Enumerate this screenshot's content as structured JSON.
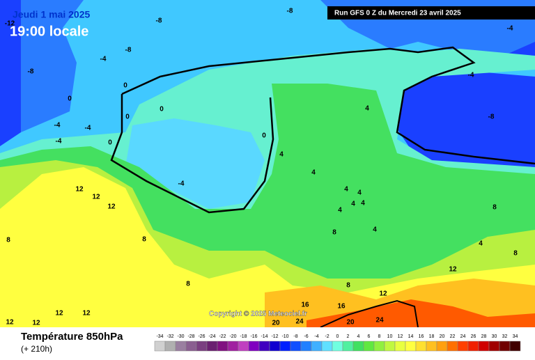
{
  "header": {
    "date": "Jeudi 1 mai 2025",
    "time": "19:00 locale",
    "run": "Run GFS 0 Z du Mercredi 23 avril 2025"
  },
  "copyright": "Copyright © 2025 Meteociel.fr",
  "footer": {
    "title": "Température 850hPa",
    "lead": "(+ 210h)"
  },
  "contour_labels": [
    "-12",
    "-8",
    "-8",
    "-4",
    "-8",
    "-4",
    "-8",
    "0",
    "-4",
    "0",
    "0",
    "0",
    "-4",
    "-4",
    "-4",
    "0",
    "-8",
    "4",
    "0",
    "4",
    "-4",
    "12",
    "12",
    "12",
    "4",
    "4",
    "4",
    "4",
    "4",
    "4",
    "8",
    "4",
    "8",
    "8",
    "8",
    "4",
    "8",
    "12",
    "8",
    "8",
    "12",
    "16",
    "16",
    "20",
    "24",
    "20",
    "24",
    "12",
    "12",
    "12",
    "12"
  ],
  "legend": {
    "ticks": [
      -34,
      -32,
      -30,
      -28,
      -26,
      -24,
      -22,
      -20,
      -18,
      -16,
      -14,
      -12,
      -10,
      -8,
      -6,
      -4,
      -2,
      0,
      2,
      4,
      6,
      8,
      10,
      12,
      14,
      16,
      18,
      20,
      22,
      24,
      26,
      28,
      30,
      32,
      34
    ],
    "colors": [
      "#d0d0d0",
      "#b0b0b0",
      "#9a7fa0",
      "#8a5f90",
      "#7a3f80",
      "#6a2070",
      "#801080",
      "#a020a0",
      "#c040c0",
      "#8000c0",
      "#4000c0",
      "#1000d0",
      "#0020ff",
      "#1050ff",
      "#2080ff",
      "#40b0ff",
      "#60e0ff",
      "#70ffe0",
      "#50f0a0",
      "#40e060",
      "#60e840",
      "#90f040",
      "#c0f840",
      "#e8ff40",
      "#ffff40",
      "#ffe030",
      "#ffc020",
      "#ffa010",
      "#ff7000",
      "#ff4000",
      "#f02000",
      "#d00000",
      "#a00000",
      "#700000",
      "#400000"
    ]
  }
}
